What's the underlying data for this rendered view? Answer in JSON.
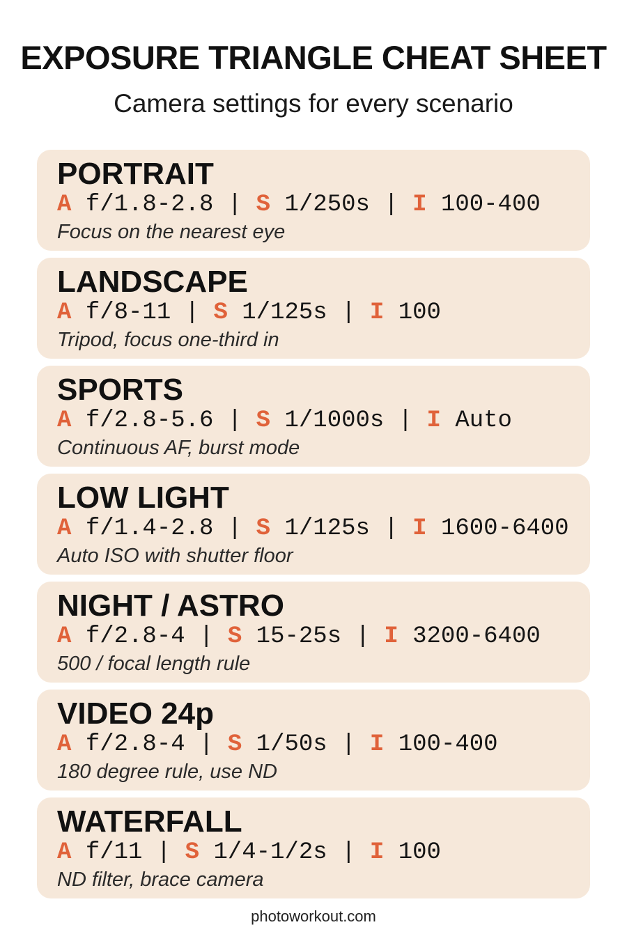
{
  "header": {
    "title": "EXPOSURE TRIANGLE CHEAT SHEET",
    "subtitle": "Camera settings for every scenario"
  },
  "labels": {
    "aperture": "A",
    "shutter": "S",
    "iso": "I",
    "separator": "|"
  },
  "cards": [
    {
      "name": "PORTRAIT",
      "aperture": "f/1.8-2.8",
      "shutter": "1/250s",
      "iso": "100-400",
      "note": "Focus on the nearest eye"
    },
    {
      "name": "LANDSCAPE",
      "aperture": "f/8-11",
      "shutter": "1/125s",
      "iso": "100",
      "note": "Tripod, focus one-third in"
    },
    {
      "name": "SPORTS",
      "aperture": "f/2.8-5.6",
      "shutter": "1/1000s",
      "iso": "Auto",
      "note": "Continuous AF, burst mode"
    },
    {
      "name": "LOW LIGHT",
      "aperture": "f/1.4-2.8",
      "shutter": "1/125s",
      "iso": "1600-6400",
      "note": "Auto ISO with shutter floor"
    },
    {
      "name": "NIGHT / ASTRO",
      "aperture": "f/2.8-4",
      "shutter": "15-25s",
      "iso": "3200-6400",
      "note": "500 / focal length rule"
    },
    {
      "name": "VIDEO 24p",
      "aperture": "f/2.8-4",
      "shutter": "1/50s",
      "iso": "100-400",
      "note": "180 degree rule, use ND"
    },
    {
      "name": "WATERFALL",
      "aperture": "f/11",
      "shutter": "1/4-1/2s",
      "iso": "100",
      "note": "ND filter, brace camera"
    }
  ],
  "footer": "photoworkout.com"
}
